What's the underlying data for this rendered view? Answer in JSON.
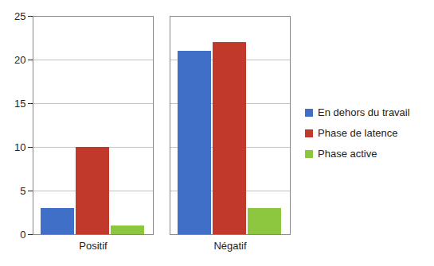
{
  "chart_data": {
    "type": "bar",
    "categories": [
      "Positif",
      "Négatif"
    ],
    "series": [
      {
        "name": "En dehors du travail",
        "color": "#3f6fc6",
        "values": [
          3,
          21
        ]
      },
      {
        "name": "Phase de latence",
        "color": "#c0392b",
        "values": [
          10,
          22
        ]
      },
      {
        "name": "Phase active",
        "color": "#8dc63f",
        "values": [
          1,
          3
        ]
      }
    ],
    "ylim": [
      0,
      25
    ],
    "yticks": [
      0,
      5,
      10,
      15,
      20,
      25
    ],
    "grid": true,
    "legend": "right"
  }
}
